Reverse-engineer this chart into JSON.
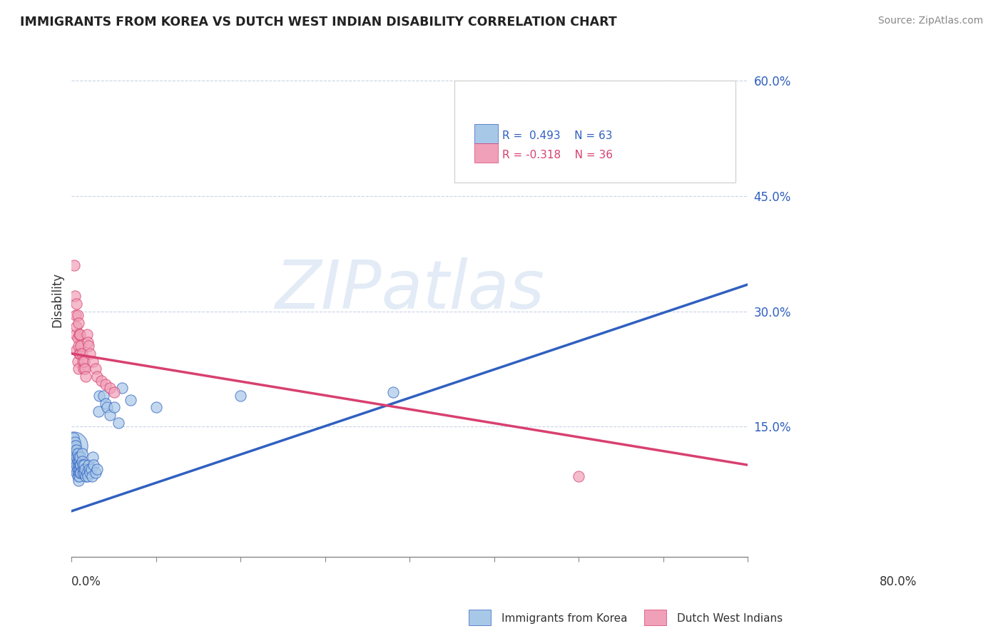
{
  "title": "IMMIGRANTS FROM KOREA VS DUTCH WEST INDIAN DISABILITY CORRELATION CHART",
  "source": "Source: ZipAtlas.com",
  "ylabel": "Disability",
  "xlim": [
    0.0,
    0.8
  ],
  "ylim": [
    -0.02,
    0.65
  ],
  "ytick_vals": [
    0.15,
    0.3,
    0.45,
    0.6
  ],
  "ytick_labels": [
    "15.0%",
    "30.0%",
    "45.0%",
    "60.0%"
  ],
  "legend_r1": "R =  0.493",
  "legend_n1": "N = 63",
  "legend_r2": "R = -0.318",
  "legend_n2": "N = 36",
  "legend_label1": "Immigrants from Korea",
  "legend_label2": "Dutch West Indians",
  "blue_color": "#a8c8e8",
  "pink_color": "#f0a0b8",
  "blue_line_color": "#3060c0",
  "pink_line_color": "#d84070",
  "blue_r_color": "#3060c0",
  "pink_r_color": "#d84070",
  "watermark": "ZIPatlas",
  "background_color": "#ffffff",
  "grid_color": "#c8d4e4",
  "blue_line_x": [
    0.0,
    0.8
  ],
  "blue_line_y": [
    0.04,
    0.335
  ],
  "pink_line_x": [
    0.0,
    0.8
  ],
  "pink_line_y": [
    0.245,
    0.1
  ],
  "blue_scatter": [
    [
      0.002,
      0.135
    ],
    [
      0.003,
      0.125
    ],
    [
      0.003,
      0.115
    ],
    [
      0.004,
      0.13
    ],
    [
      0.004,
      0.12
    ],
    [
      0.004,
      0.11
    ],
    [
      0.005,
      0.125
    ],
    [
      0.005,
      0.115
    ],
    [
      0.005,
      0.105
    ],
    [
      0.005,
      0.095
    ],
    [
      0.006,
      0.12
    ],
    [
      0.006,
      0.11
    ],
    [
      0.006,
      0.1
    ],
    [
      0.006,
      0.09
    ],
    [
      0.007,
      0.115
    ],
    [
      0.007,
      0.105
    ],
    [
      0.007,
      0.095
    ],
    [
      0.007,
      0.085
    ],
    [
      0.008,
      0.11
    ],
    [
      0.008,
      0.1
    ],
    [
      0.008,
      0.09
    ],
    [
      0.008,
      0.08
    ],
    [
      0.009,
      0.105
    ],
    [
      0.009,
      0.095
    ],
    [
      0.009,
      0.085
    ],
    [
      0.01,
      0.11
    ],
    [
      0.01,
      0.1
    ],
    [
      0.01,
      0.09
    ],
    [
      0.011,
      0.1
    ],
    [
      0.011,
      0.09
    ],
    [
      0.012,
      0.115
    ],
    [
      0.012,
      0.105
    ],
    [
      0.013,
      0.1
    ],
    [
      0.013,
      0.09
    ],
    [
      0.014,
      0.095
    ],
    [
      0.015,
      0.1
    ],
    [
      0.015,
      0.09
    ],
    [
      0.016,
      0.095
    ],
    [
      0.017,
      0.085
    ],
    [
      0.018,
      0.09
    ],
    [
      0.019,
      0.085
    ],
    [
      0.02,
      0.1
    ],
    [
      0.021,
      0.095
    ],
    [
      0.022,
      0.09
    ],
    [
      0.023,
      0.095
    ],
    [
      0.024,
      0.085
    ],
    [
      0.025,
      0.11
    ],
    [
      0.026,
      0.1
    ],
    [
      0.028,
      0.09
    ],
    [
      0.03,
      0.095
    ],
    [
      0.032,
      0.17
    ],
    [
      0.033,
      0.19
    ],
    [
      0.038,
      0.19
    ],
    [
      0.04,
      0.18
    ],
    [
      0.042,
      0.175
    ],
    [
      0.045,
      0.165
    ],
    [
      0.05,
      0.175
    ],
    [
      0.055,
      0.155
    ],
    [
      0.06,
      0.2
    ],
    [
      0.07,
      0.185
    ],
    [
      0.1,
      0.175
    ],
    [
      0.2,
      0.19
    ],
    [
      0.38,
      0.195
    ]
  ],
  "pink_scatter": [
    [
      0.003,
      0.36
    ],
    [
      0.004,
      0.32
    ],
    [
      0.005,
      0.295
    ],
    [
      0.005,
      0.27
    ],
    [
      0.006,
      0.31
    ],
    [
      0.006,
      0.28
    ],
    [
      0.006,
      0.25
    ],
    [
      0.007,
      0.295
    ],
    [
      0.007,
      0.265
    ],
    [
      0.007,
      0.235
    ],
    [
      0.008,
      0.285
    ],
    [
      0.008,
      0.255
    ],
    [
      0.008,
      0.225
    ],
    [
      0.009,
      0.27
    ],
    [
      0.009,
      0.245
    ],
    [
      0.01,
      0.27
    ],
    [
      0.01,
      0.245
    ],
    [
      0.011,
      0.255
    ],
    [
      0.012,
      0.245
    ],
    [
      0.013,
      0.235
    ],
    [
      0.014,
      0.225
    ],
    [
      0.015,
      0.235
    ],
    [
      0.016,
      0.225
    ],
    [
      0.017,
      0.215
    ],
    [
      0.018,
      0.27
    ],
    [
      0.019,
      0.26
    ],
    [
      0.02,
      0.255
    ],
    [
      0.022,
      0.245
    ],
    [
      0.025,
      0.235
    ],
    [
      0.028,
      0.225
    ],
    [
      0.03,
      0.215
    ],
    [
      0.035,
      0.21
    ],
    [
      0.04,
      0.205
    ],
    [
      0.045,
      0.2
    ],
    [
      0.05,
      0.195
    ],
    [
      0.6,
      0.085
    ]
  ],
  "blue_large_dot": [
    0.002,
    0.125
  ],
  "blue_large_size": 800
}
